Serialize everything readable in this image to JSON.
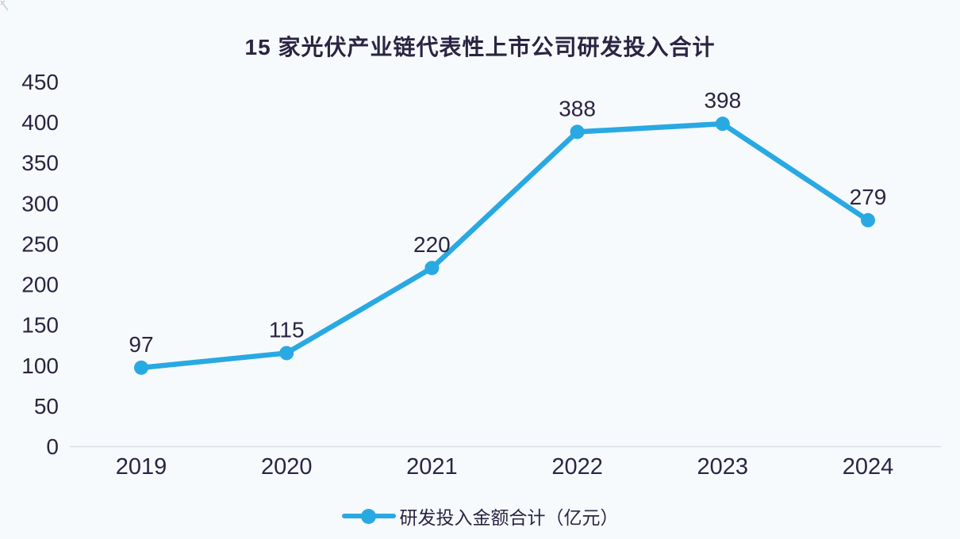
{
  "chart": {
    "title": "15 家光伏产业链代表性上市公司研发投入合计",
    "legend_label": "研发投入金额合计（亿元）"
  },
  "chart_data": {
    "type": "line",
    "title": "15 家光伏产业链代表性上市公司研发投入合计",
    "categories": [
      "2019",
      "2020",
      "2021",
      "2022",
      "2023",
      "2024"
    ],
    "series": [
      {
        "name": "研发投入金额合计（亿元）",
        "values": [
          97,
          115,
          220,
          388,
          398,
          279
        ]
      }
    ],
    "data_labels_shown": true,
    "xlabel": "",
    "ylabel": "",
    "ylim": [
      0,
      450
    ],
    "ytick_step": 50,
    "grid": false,
    "legend_position": "bottom-center",
    "colors": {
      "line": "#29a9e2",
      "text": "#2b2442",
      "axis_line": "#d9dee5",
      "background": "#f7fafd"
    }
  }
}
